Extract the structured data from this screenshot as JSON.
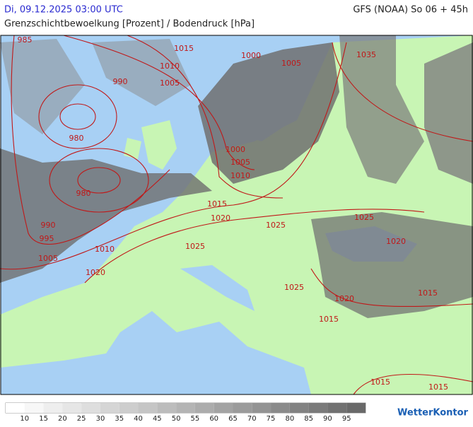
{
  "header": {
    "datetime": "Di, 09.12.2025 03:00 UTC",
    "model_run": "GFS (NOAA) So 06 + 45h",
    "title": "Grenzschichtbewoelkung [Prozent] / Bodendruck [hPa]"
  },
  "map": {
    "isobar_labels": [
      985,
      1015,
      1000,
      1005,
      1035,
      1010,
      990,
      1005,
      980,
      1000,
      1005,
      1010,
      980,
      1015,
      1020,
      1025,
      1025,
      990,
      995,
      1010,
      1020,
      1025,
      1005,
      1020,
      1025,
      1015,
      1020,
      1015,
      1015,
      1015
    ]
  },
  "legend": {
    "ticks": [
      10,
      15,
      20,
      25,
      30,
      35,
      40,
      45,
      50,
      55,
      60,
      65,
      70,
      75,
      80,
      85,
      90,
      95
    ]
  },
  "brand": "WetterKontor"
}
